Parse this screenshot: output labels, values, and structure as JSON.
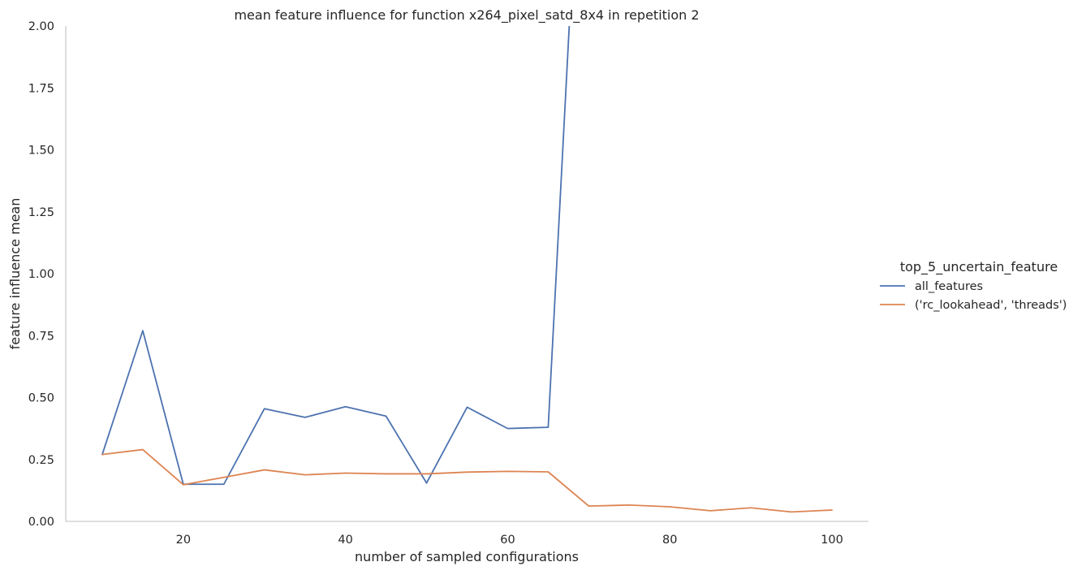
{
  "chart_data": {
    "type": "line",
    "title": "mean feature influence for function x264_pixel_satd_8x4 in repetition 2",
    "xlabel": "number of sampled configurations",
    "ylabel": "feature influence mean",
    "xlim": [
      5.5,
      104.5
    ],
    "ylim": [
      0,
      2.0
    ],
    "xticks": [
      20,
      40,
      60,
      80,
      100
    ],
    "yticks": [
      0.0,
      0.25,
      0.5,
      0.75,
      1.0,
      1.25,
      1.5,
      1.75,
      2.0
    ],
    "ytick_labels": [
      "0.00",
      "0.25",
      "0.50",
      "0.75",
      "1.00",
      "1.25",
      "1.50",
      "1.75",
      "2.00"
    ],
    "grid": false,
    "legend": {
      "title": "top_5_uncertain_feature",
      "placement": "right"
    },
    "series": [
      {
        "name": "all_features",
        "color": "#4c72b0",
        "x": [
          10,
          15,
          20,
          25,
          30,
          35,
          40,
          45,
          50,
          55,
          60,
          65,
          70
        ],
        "y": [
          0.27,
          0.77,
          0.15,
          0.15,
          0.455,
          0.42,
          0.463,
          0.425,
          0.155,
          0.461,
          0.375,
          0.38,
          3.5
        ]
      },
      {
        "name": "('rc_lookahead', 'threads')",
        "color": "#dd8452",
        "x": [
          10,
          15,
          20,
          25,
          30,
          35,
          40,
          45,
          50,
          55,
          60,
          65,
          70,
          75,
          80,
          85,
          90,
          95,
          100
        ],
        "y": [
          0.27,
          0.29,
          0.148,
          0.178,
          0.208,
          0.188,
          0.195,
          0.192,
          0.192,
          0.199,
          0.202,
          0.2,
          0.062,
          0.066,
          0.059,
          0.043,
          0.055,
          0.038,
          0.046
        ]
      }
    ]
  }
}
